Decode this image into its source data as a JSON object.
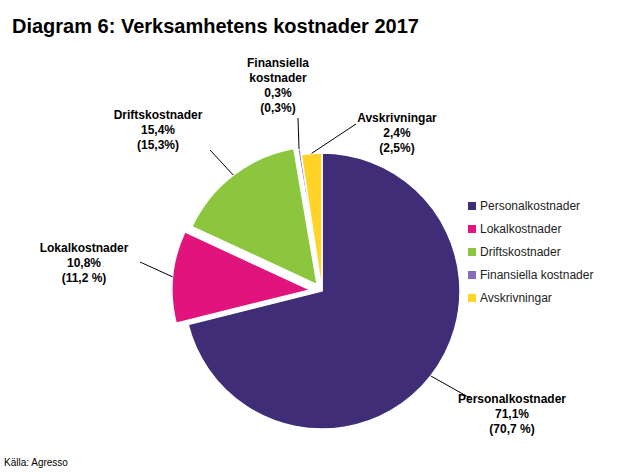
{
  "chart_data": {
    "type": "pie",
    "title": "Diagram 6: Verksamhetens kostnader 2017",
    "categories": [
      "Personalkostnader",
      "Lokalkostnader",
      "Driftskostnader",
      "Finansiella kostnader",
      "Avskrivningar"
    ],
    "values": [
      71.1,
      10.8,
      15.4,
      0.3,
      2.4
    ],
    "value_labels": [
      "71,1%",
      "10,8%",
      "15,4%",
      "0,3%",
      "2,4%"
    ],
    "previous_values": [
      70.7,
      11.2,
      15.3,
      0.3,
      2.5
    ],
    "previous_value_labels": [
      "(70,7 %)",
      "(11,2 %)",
      "(15,3%)",
      "(0,3%)",
      "(2,5%)"
    ],
    "colors": [
      "#3f2d78",
      "#e0147c",
      "#8cc63f",
      "#8a6cb8",
      "#ffd426"
    ],
    "legend": "right",
    "data_labels": true,
    "source": "Källa: Agresso"
  }
}
